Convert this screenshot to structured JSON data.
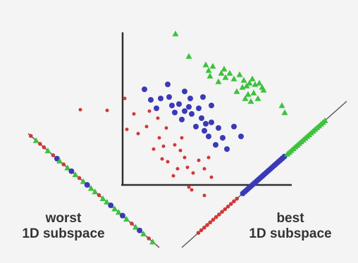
{
  "colors": {
    "background": "#f4f4f4",
    "axis": "#303030",
    "red": "#d0383a",
    "blue": "#3a3ab6",
    "green": "#3cc23c"
  },
  "labels": {
    "worst_line1": "worst",
    "worst_line2": "1D subspace",
    "best_line1": "best",
    "best_line2": "1D subspace"
  }
}
